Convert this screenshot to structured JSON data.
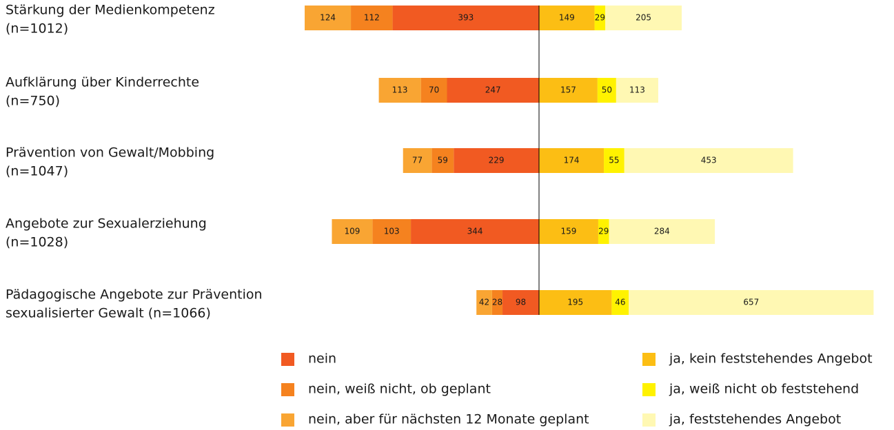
{
  "chart_data": {
    "type": "bar",
    "categories": [
      [
        "Stärkung der Medienkompetenz",
        "(n=1012)"
      ],
      [
        "Aufklärung über Kinderrechte",
        "(n=750)"
      ],
      [
        "Prävention von Gewalt/Mobbing",
        "(n=1047)"
      ],
      [
        "Angebote zur Sexualerziehung",
        "(n=1028)"
      ],
      [
        "Pädagogische Angebote zur Prävention",
        "sexualisierter Gewalt (n=1066)"
      ]
    ],
    "series": [
      {
        "name": "nein",
        "color": "#f15a22",
        "values": [
          393,
          247,
          229,
          344,
          98
        ]
      },
      {
        "name": "nein, weiß nicht, ob geplant",
        "color": "#f5821f",
        "values": [
          112,
          70,
          59,
          103,
          28
        ]
      },
      {
        "name": "nein, aber für nächsten 12 Monate geplant",
        "color": "#f9a533",
        "values": [
          124,
          113,
          77,
          109,
          42
        ]
      },
      {
        "name": "ja, kein feststehendes Angebot",
        "color": "#fcbe14",
        "values": [
          149,
          157,
          174,
          159,
          195
        ]
      },
      {
        "name": "ja, weiß nicht ob feststehend",
        "color": "#fff200",
        "values": [
          29,
          50,
          55,
          29,
          46
        ]
      },
      {
        "name": "ja, feststehendes Angebot",
        "color": "#fff8b3",
        "values": [
          205,
          113,
          453,
          284,
          657
        ]
      }
    ]
  }
}
